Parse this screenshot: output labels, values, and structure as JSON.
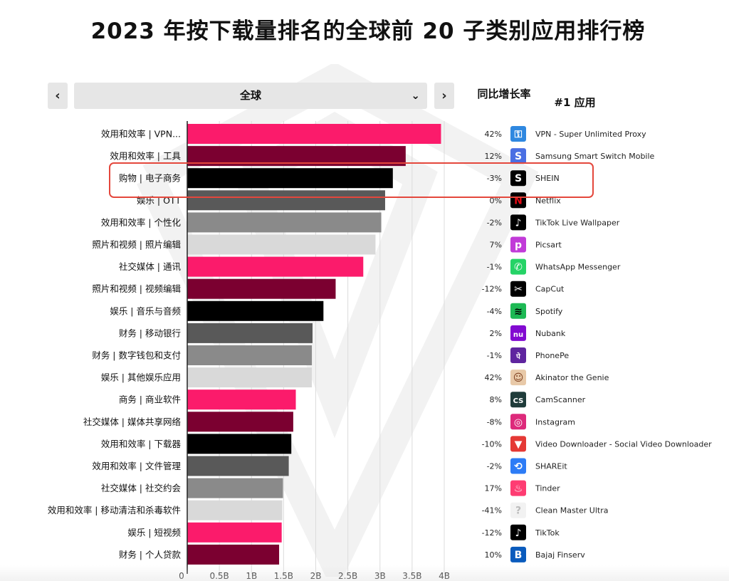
{
  "title": "2023 年按下载量排名的全球前 20 子类别应用排行榜",
  "nav": {
    "prev_label": "‹",
    "next_label": "›",
    "region": "全球",
    "dropdown_icon": "chevron-down-icon"
  },
  "columns": {
    "growth": "同比增长率",
    "top_app": "#1 应用"
  },
  "colors": [
    "#fb1b6b",
    "#7b0030",
    "#000000",
    "#595959",
    "#8a8a8a",
    "#d9d9d9"
  ],
  "highlight": {
    "category": "购物 | 电子商务",
    "color": "#e4473c"
  },
  "chart_data": {
    "type": "bar",
    "orientation": "horizontal",
    "title": "2023 年按下载量排名的全球前 20 子类别应用排行榜",
    "xlabel": "",
    "ylabel": "",
    "xlim": [
      0,
      4.0
    ],
    "unit": "B",
    "ticks": [
      "0",
      "0.5B",
      "1B",
      "1.5B",
      "2B",
      "2.5B",
      "3B",
      "3.5B",
      "4B"
    ],
    "categories": [
      "效用和效率 | VPN...",
      "效用和效率 | 工具",
      "购物 | 电子商务",
      "娱乐 | OTT",
      "效用和效率 | 个性化",
      "照片和视频 | 照片编辑",
      "社交媒体 | 通讯",
      "照片和视频 | 视频编辑",
      "娱乐 | 音乐与音频",
      "财务 | 移动银行",
      "财务 | 数字钱包和支付",
      "娱乐 | 其他娱乐应用",
      "商务 | 商业软件",
      "社交媒体 | 媒体共享网络",
      "效用和效率 | 下载器",
      "效用和效率 | 文件管理",
      "社交媒体 | 社交约会",
      "效用和效率 | 移动清洁和杀毒软件",
      "娱乐 | 短视频",
      "财务 | 个人贷款"
    ],
    "values": [
      3.95,
      3.4,
      3.2,
      3.08,
      3.02,
      2.93,
      2.74,
      2.31,
      2.12,
      1.95,
      1.94,
      1.94,
      1.69,
      1.65,
      1.62,
      1.58,
      1.49,
      1.48,
      1.47,
      1.43
    ],
    "growth": [
      "42%",
      "12%",
      "-3%",
      "0%",
      "-2%",
      "7%",
      "-1%",
      "-12%",
      "-4%",
      "2%",
      "-1%",
      "42%",
      "8%",
      "-8%",
      "-10%",
      "-2%",
      "17%",
      "-41%",
      "-12%",
      "10%"
    ],
    "top_apps": [
      "VPN - Super Unlimited Proxy",
      "Samsung Smart Switch Mobile",
      "SHEIN",
      "Netflix",
      "TikTok Live Wallpaper",
      "Picsart",
      "WhatsApp Messenger",
      "CapCut",
      "Spotify",
      "Nubank",
      "PhonePe",
      "Akinator the Genie",
      "CamScanner",
      "Instagram",
      "Video Downloader - Social Video Downloader",
      "SHAREit",
      "Tinder",
      "Clean Master Ultra",
      "TikTok",
      "Bajaj Finserv"
    ],
    "app_icons": [
      {
        "name": "vpn-key-icon",
        "bg": "#2f88e0",
        "glyph": "⚿",
        "fg": "#ffffff"
      },
      {
        "name": "smart-switch-icon",
        "bg": "#4a6fe3",
        "glyph": "S",
        "fg": "#ffffff"
      },
      {
        "name": "shein-icon",
        "bg": "#000000",
        "glyph": "S",
        "fg": "#ffffff"
      },
      {
        "name": "netflix-icon",
        "bg": "#000000",
        "glyph": "N",
        "fg": "#e50914"
      },
      {
        "name": "tiktok-wallpaper-icon",
        "bg": "#000000",
        "glyph": "♪",
        "fg": "#ffffff"
      },
      {
        "name": "picsart-icon",
        "bg": "#c13bd8",
        "glyph": "p",
        "fg": "#ffffff"
      },
      {
        "name": "whatsapp-icon",
        "bg": "#25d366",
        "glyph": "✆",
        "fg": "#ffffff"
      },
      {
        "name": "capcut-icon",
        "bg": "#000000",
        "glyph": "✂",
        "fg": "#ffffff"
      },
      {
        "name": "spotify-icon",
        "bg": "#1db954",
        "glyph": "≋",
        "fg": "#000000"
      },
      {
        "name": "nubank-icon",
        "bg": "#820ad1",
        "glyph": "nu",
        "fg": "#ffffff"
      },
      {
        "name": "phonepe-icon",
        "bg": "#5f259f",
        "glyph": "पे",
        "fg": "#ffffff"
      },
      {
        "name": "akinator-icon",
        "bg": "#e8c9a8",
        "glyph": "☺",
        "fg": "#7a3b1a"
      },
      {
        "name": "camscanner-icon",
        "bg": "#1f3c3a",
        "glyph": "CS",
        "fg": "#ffffff"
      },
      {
        "name": "instagram-icon",
        "bg": "#dd2a7b",
        "glyph": "◎",
        "fg": "#ffffff"
      },
      {
        "name": "video-downloader-icon",
        "bg": "#e53935",
        "glyph": "▼",
        "fg": "#ffffff"
      },
      {
        "name": "shareit-icon",
        "bg": "#2d7cf6",
        "glyph": "⟲",
        "fg": "#ffffff"
      },
      {
        "name": "tinder-icon",
        "bg": "#fe3c72",
        "glyph": "♨",
        "fg": "#ffffff"
      },
      {
        "name": "clean-master-icon",
        "bg": "#f2f2f2",
        "glyph": "?",
        "fg": "#bbbbbb"
      },
      {
        "name": "tiktok-icon",
        "bg": "#000000",
        "glyph": "♪",
        "fg": "#ffffff"
      },
      {
        "name": "bajaj-finserv-icon",
        "bg": "#0a5bbd",
        "glyph": "B",
        "fg": "#ffffff"
      }
    ]
  }
}
